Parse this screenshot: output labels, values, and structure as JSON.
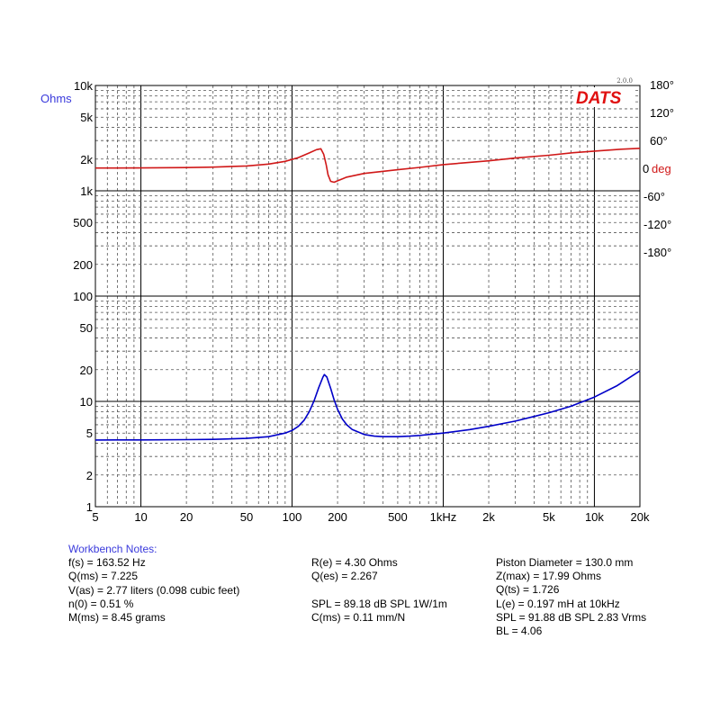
{
  "chart_data": {
    "type": "line",
    "x_scale": "log",
    "x_ticks": [
      {
        "v": 5,
        "label": "5"
      },
      {
        "v": 10,
        "label": "10"
      },
      {
        "v": 20,
        "label": "20"
      },
      {
        "v": 50,
        "label": "50"
      },
      {
        "v": 100,
        "label": "100"
      },
      {
        "v": 200,
        "label": "200"
      },
      {
        "v": 500,
        "label": "500"
      },
      {
        "v": 1000,
        "label": "1kHz"
      },
      {
        "v": 2000,
        "label": "2k"
      },
      {
        "v": 5000,
        "label": "5k"
      },
      {
        "v": 10000,
        "label": "10k"
      },
      {
        "v": 20000,
        "label": "20k"
      }
    ],
    "xlim": [
      5,
      20000
    ],
    "y_left_scale": "log",
    "y_left_label": "Ohms",
    "y_left_ticks": [
      {
        "v": 10000,
        "label": "10k"
      },
      {
        "v": 5000,
        "label": "5k"
      },
      {
        "v": 2000,
        "label": "2k"
      },
      {
        "v": 1000,
        "label": "1k"
      },
      {
        "v": 500,
        "label": "500"
      },
      {
        "v": 200,
        "label": "200"
      },
      {
        "v": 100,
        "label": "100"
      },
      {
        "v": 50,
        "label": "50"
      },
      {
        "v": 20,
        "label": "20"
      },
      {
        "v": 10,
        "label": "10"
      },
      {
        "v": 5,
        "label": "5"
      },
      {
        "v": 2,
        "label": "2"
      },
      {
        "v": 1,
        "label": "1"
      }
    ],
    "y_left_lim": [
      1,
      10000
    ],
    "y_right_label": "deg",
    "y_right_ticks": [
      {
        "v": 180,
        "label": "180°"
      },
      {
        "v": 120,
        "label": "120°"
      },
      {
        "v": 60,
        "label": "60°"
      },
      {
        "v": 0,
        "label": "0"
      },
      {
        "v": -60,
        "label": "-60°"
      },
      {
        "v": -120,
        "label": "-120°"
      },
      {
        "v": -180,
        "label": "-180°"
      }
    ],
    "logo": "DATS",
    "version": "2.0.0",
    "grid": true,
    "series": [
      {
        "axis": "left",
        "color": "#0000c8",
        "points": [
          [
            5,
            4.3
          ],
          [
            10,
            4.31
          ],
          [
            20,
            4.33
          ],
          [
            30,
            4.36
          ],
          [
            50,
            4.45
          ],
          [
            70,
            4.62
          ],
          [
            90,
            5.0
          ],
          [
            100,
            5.3
          ],
          [
            110,
            5.8
          ],
          [
            120,
            6.6
          ],
          [
            130,
            8.0
          ],
          [
            140,
            10.2
          ],
          [
            150,
            13.5
          ],
          [
            160,
            17.0
          ],
          [
            163.5,
            17.99
          ],
          [
            170,
            17.0
          ],
          [
            180,
            13.3
          ],
          [
            190,
            10.3
          ],
          [
            200,
            8.4
          ],
          [
            215,
            6.8
          ],
          [
            230,
            6.0
          ],
          [
            250,
            5.4
          ],
          [
            300,
            4.85
          ],
          [
            350,
            4.68
          ],
          [
            400,
            4.62
          ],
          [
            500,
            4.62
          ],
          [
            600,
            4.68
          ],
          [
            700,
            4.75
          ],
          [
            800,
            4.85
          ],
          [
            1000,
            5.0
          ],
          [
            1500,
            5.4
          ],
          [
            2000,
            5.8
          ],
          [
            3000,
            6.5
          ],
          [
            4000,
            7.2
          ],
          [
            5000,
            7.8
          ],
          [
            7000,
            9.0
          ],
          [
            10000,
            11.0
          ],
          [
            14000,
            14.0
          ],
          [
            20000,
            19.5
          ]
        ]
      },
      {
        "axis": "right",
        "color": "#d01818",
        "points": [
          [
            5,
            0.5
          ],
          [
            10,
            0.8
          ],
          [
            20,
            1.5
          ],
          [
            30,
            2.5
          ],
          [
            50,
            5
          ],
          [
            70,
            9
          ],
          [
            90,
            15
          ],
          [
            110,
            23
          ],
          [
            130,
            33
          ],
          [
            145,
            40
          ],
          [
            155,
            42
          ],
          [
            162,
            30
          ],
          [
            168,
            8
          ],
          [
            173,
            -14
          ],
          [
            180,
            -28
          ],
          [
            190,
            -30
          ],
          [
            200,
            -27
          ],
          [
            230,
            -19
          ],
          [
            300,
            -11
          ],
          [
            500,
            -3
          ],
          [
            700,
            2
          ],
          [
            1000,
            8
          ],
          [
            2000,
            16
          ],
          [
            3000,
            22
          ],
          [
            5000,
            28
          ],
          [
            7000,
            33
          ],
          [
            10000,
            37
          ],
          [
            15000,
            41
          ],
          [
            20000,
            43
          ]
        ]
      }
    ]
  },
  "notes": {
    "title": "Workbench Notes:",
    "col1": [
      "f(s) = 163.52 Hz",
      "Q(ms) = 7.225",
      "V(as) = 2.77 liters  (0.098 cubic feet)",
      "n(0) = 0.51 %",
      "M(ms) = 8.45 grams"
    ],
    "col2": [
      "R(e) = 4.30 Ohms",
      "Q(es) = 2.267",
      "",
      "SPL = 89.18 dB SPL 1W/1m",
      "C(ms) = 0.11 mm/N"
    ],
    "col3": [
      "Piston Diameter = 130.0 mm",
      "Z(max) = 17.99 Ohms",
      "Q(ts) = 1.726",
      "L(e) = 0.197 mH at 10kHz",
      "SPL = 91.88 dB SPL 2.83 Vrms",
      "BL = 4.06"
    ]
  }
}
